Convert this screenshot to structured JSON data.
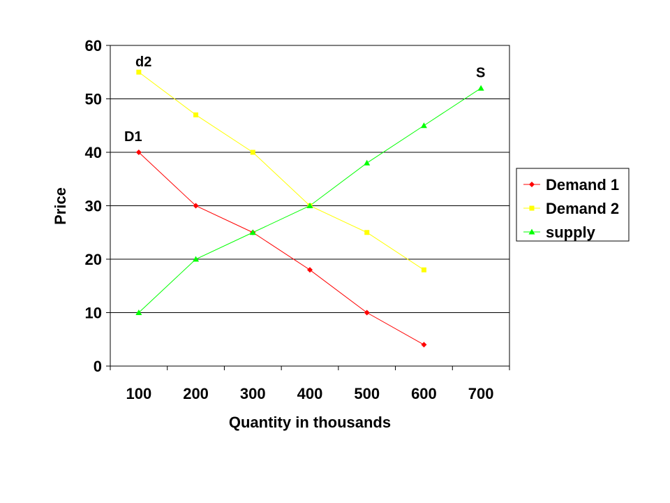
{
  "chart_data": {
    "type": "line",
    "title": "",
    "xlabel": "Quantity in thousands",
    "ylabel": "Price",
    "categories": [
      "100",
      "200",
      "300",
      "400",
      "500",
      "600",
      "700"
    ],
    "ylim": [
      0,
      60
    ],
    "yticks": [
      "0",
      "10",
      "20",
      "30",
      "40",
      "50",
      "60"
    ],
    "grid": true,
    "legend_position": "right",
    "series": [
      {
        "name": "Demand 1",
        "color": "#ff0000",
        "marker": "diamond",
        "values": [
          40,
          30,
          25,
          18,
          10,
          4,
          null
        ]
      },
      {
        "name": "Demand 2",
        "color": "#ffff00",
        "marker": "square",
        "values": [
          55,
          47,
          40,
          30,
          25,
          18,
          null
        ]
      },
      {
        "name": "supply",
        "color": "#00ff00",
        "marker": "triangle",
        "values": [
          10,
          20,
          25,
          30,
          38,
          45,
          52
        ]
      }
    ],
    "annotations": [
      {
        "text": "d2",
        "x": "100",
        "y": 57
      },
      {
        "text": "D1",
        "x": "100",
        "y": 43
      },
      {
        "text": "S",
        "x": "700",
        "y": 55
      }
    ]
  }
}
